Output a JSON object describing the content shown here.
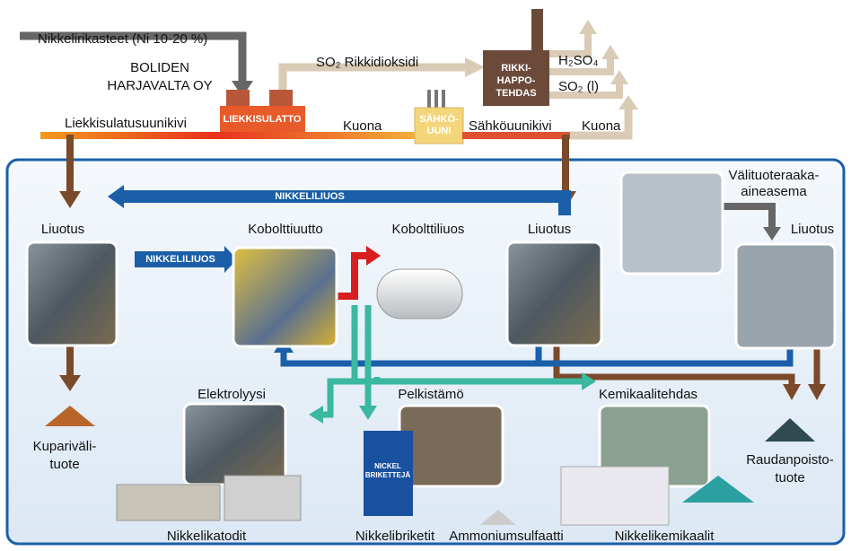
{
  "feed": "Nikkelirikasteet (Ni 10-20 %)",
  "company": [
    "BOLIDEN",
    "HARJAVALTA OY"
  ],
  "smelting": {
    "furnace": "LIEKKISULATTO",
    "matte": "Liekkisulatusuunikivi",
    "slag": "Kuona"
  },
  "sulphur": {
    "gas": "SO₂ Rikkidioksidi",
    "plant": [
      "RIKKI-",
      "HAPPO-",
      "TEHDAS"
    ],
    "products": [
      "H₂SO₄",
      "SO₂ (l)"
    ]
  },
  "electric": {
    "furnace": [
      "SÄHKÖ-",
      "UUNI"
    ],
    "matte": "Sähköuunikivi",
    "slag": "Kuona"
  },
  "refinery": {
    "nickel_solution_top": "NIKKELILIUOS",
    "nickel_solution": "NIKKELILIUOS",
    "storage": [
      "Välituoteraaka-",
      "aineasema"
    ],
    "steps": [
      "Liuotus",
      "Kobolttiuutto",
      "Kobolttiliuos",
      "Liuotus",
      "Liuotus"
    ],
    "plants": [
      "Elektrolyysi",
      "Pelkistämö",
      "Kemikaalitehdas"
    ],
    "copper": [
      "Kuparivälі-",
      "tuote"
    ],
    "iron": [
      "Raudanpoisto-",
      "tuote"
    ],
    "can": [
      "NICKEL",
      "BRIKETTEJÄ"
    ],
    "products": [
      "Nikkelikatodit",
      "Nikkelibriketit",
      "Ammoniumsulfaatti",
      "Nikkelikemikaalit"
    ]
  }
}
